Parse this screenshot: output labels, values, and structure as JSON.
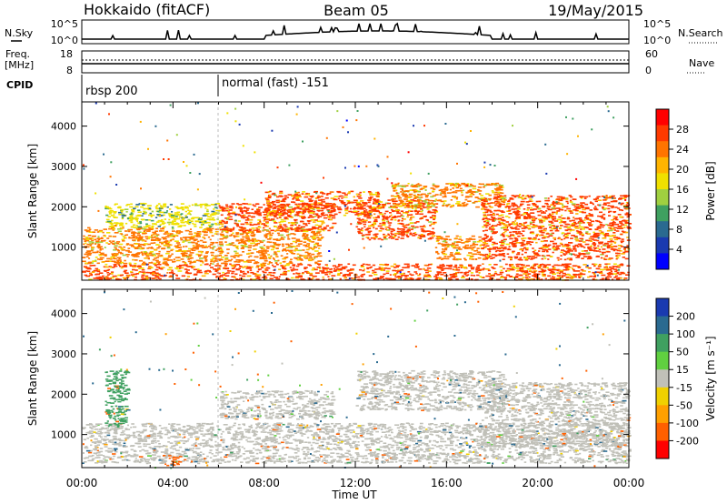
{
  "header": {
    "radar": "Hokkaido (fitACF)",
    "beam": "Beam 05",
    "date": "19/May/2015"
  },
  "top_panels": {
    "nsky_label": "N.Sky",
    "nsky_ticks": [
      "10^5",
      "10^0"
    ],
    "nsearch_label": "N.Search",
    "freq_label_1": "Freq.",
    "freq_label_2": "[MHz]",
    "freq_ticks": [
      "18",
      "8"
    ],
    "nave_label": "Nave",
    "nave_ticks": [
      "60",
      "0"
    ],
    "cpid_label": "CPID",
    "cpid_modes": [
      "rbsp 200",
      "normal (fast) -151"
    ]
  },
  "axes": {
    "xlabel": "Time UT",
    "ylabel": "Slant Range [km]"
  },
  "colorbars": {
    "power": {
      "label": "Power [dB]",
      "ticks": [
        "28",
        "24",
        "20",
        "16",
        "12",
        "8",
        "4"
      ],
      "colors": [
        "#ff0000",
        "#ff3a00",
        "#ff7400",
        "#ffb400",
        "#f0e000",
        "#a0d040",
        "#3fa060",
        "#2a6a90",
        "#1a3ab0",
        "#0000ff"
      ]
    },
    "velocity": {
      "label": "Velocity [m s⁻¹]",
      "ticks": [
        "200",
        "100",
        "50",
        "15",
        "-15",
        "-50",
        "-100",
        "-200"
      ],
      "colors": [
        "#1a3ab0",
        "#2a6a90",
        "#3fa060",
        "#60d040",
        "#c0c0b8",
        "#f0d000",
        "#ffa000",
        "#ff6000",
        "#ff0000"
      ]
    }
  },
  "chart_data": [
    {
      "type": "heatmap",
      "title": "Power [dB]",
      "xlabel": "Time UT",
      "ylabel": "Slant Range [km]",
      "xticks": [
        "00:00",
        "04:00",
        "08:00",
        "12:00",
        "16:00",
        "20:00",
        "00:00"
      ],
      "xlim_hours": [
        0,
        24
      ],
      "yticks": [
        1000,
        2000,
        3000,
        4000
      ],
      "ylim": [
        180,
        4600
      ],
      "zlim": [
        0,
        32
      ],
      "cpid_switch_hour": 6.0,
      "scatter_bands": [
        {
          "t": [
            0.0,
            24.0
          ],
          "r": [
            200,
            600
          ],
          "power": 28
        },
        {
          "t": [
            0.0,
            10.5
          ],
          "r": [
            600,
            1500
          ],
          "power": 26
        },
        {
          "t": [
            1.0,
            6.0
          ],
          "r": [
            1500,
            2100
          ],
          "power": 18
        },
        {
          "t": [
            6.0,
            11.0
          ],
          "r": [
            1400,
            2100
          ],
          "power": 27
        },
        {
          "t": [
            8.0,
            13.0
          ],
          "r": [
            1800,
            2400
          ],
          "power": 28
        },
        {
          "t": [
            12.0,
            15.5
          ],
          "r": [
            1200,
            2200
          ],
          "power": 27
        },
        {
          "t": [
            15.5,
            17.5
          ],
          "r": [
            700,
            1300
          ],
          "power": 26
        },
        {
          "t": [
            13.5,
            18.5
          ],
          "r": [
            2000,
            2600
          ],
          "power": 24
        },
        {
          "t": [
            17.5,
            24.0
          ],
          "r": [
            700,
            2300
          ],
          "power": 27
        }
      ]
    },
    {
      "type": "heatmap",
      "title": "Velocity [m s⁻¹]",
      "xlabel": "Time UT",
      "ylabel": "Slant Range [km]",
      "xticks": [
        "00:00",
        "04:00",
        "08:00",
        "12:00",
        "16:00",
        "20:00",
        "00:00"
      ],
      "xlim_hours": [
        0,
        24
      ],
      "yticks": [
        1000,
        2000,
        3000,
        4000
      ],
      "ylim": [
        180,
        4600
      ],
      "zlim": [
        -250,
        250
      ],
      "scatter_bands": [
        {
          "t": [
            0.0,
            24.0
          ],
          "r": [
            300,
            1300
          ],
          "velocity": 0
        },
        {
          "t": [
            6.0,
            11.0
          ],
          "r": [
            1400,
            2100
          ],
          "velocity": 0
        },
        {
          "t": [
            12.0,
            18.5
          ],
          "r": [
            1600,
            2600
          ],
          "velocity": 0
        },
        {
          "t": [
            17.5,
            24.0
          ],
          "r": [
            700,
            2300
          ],
          "velocity": 0
        },
        {
          "t": [
            1.0,
            2.0
          ],
          "r": [
            1200,
            2600
          ],
          "velocity": 60
        },
        {
          "t": [
            3.5,
            4.5
          ],
          "r": [
            250,
            500
          ],
          "velocity": -110
        }
      ]
    }
  ]
}
